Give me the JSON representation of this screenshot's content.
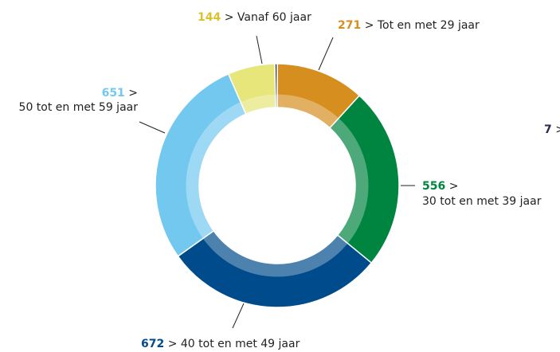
{
  "chart_data": {
    "type": "donut",
    "categories": [
      "Tot en met 29 jaar",
      "30 tot en met 39 jaar",
      "40 tot en met 49 jaar",
      "50 tot en met 59 jaar",
      "Vanaf 60 jaar",
      null
    ],
    "values": [
      271,
      556,
      672,
      651,
      144,
      7
    ],
    "colors": [
      "#d68f1f",
      "#008540",
      "#004b8c",
      "#73c8f0",
      "#e6e67a",
      "#2b2b4a"
    ],
    "label_colors": [
      "#d68f1f",
      "#008540",
      "#004b8c",
      "#73c8f0",
      "#d9c22e",
      "#2b2b4a"
    ],
    "separator": ">"
  }
}
